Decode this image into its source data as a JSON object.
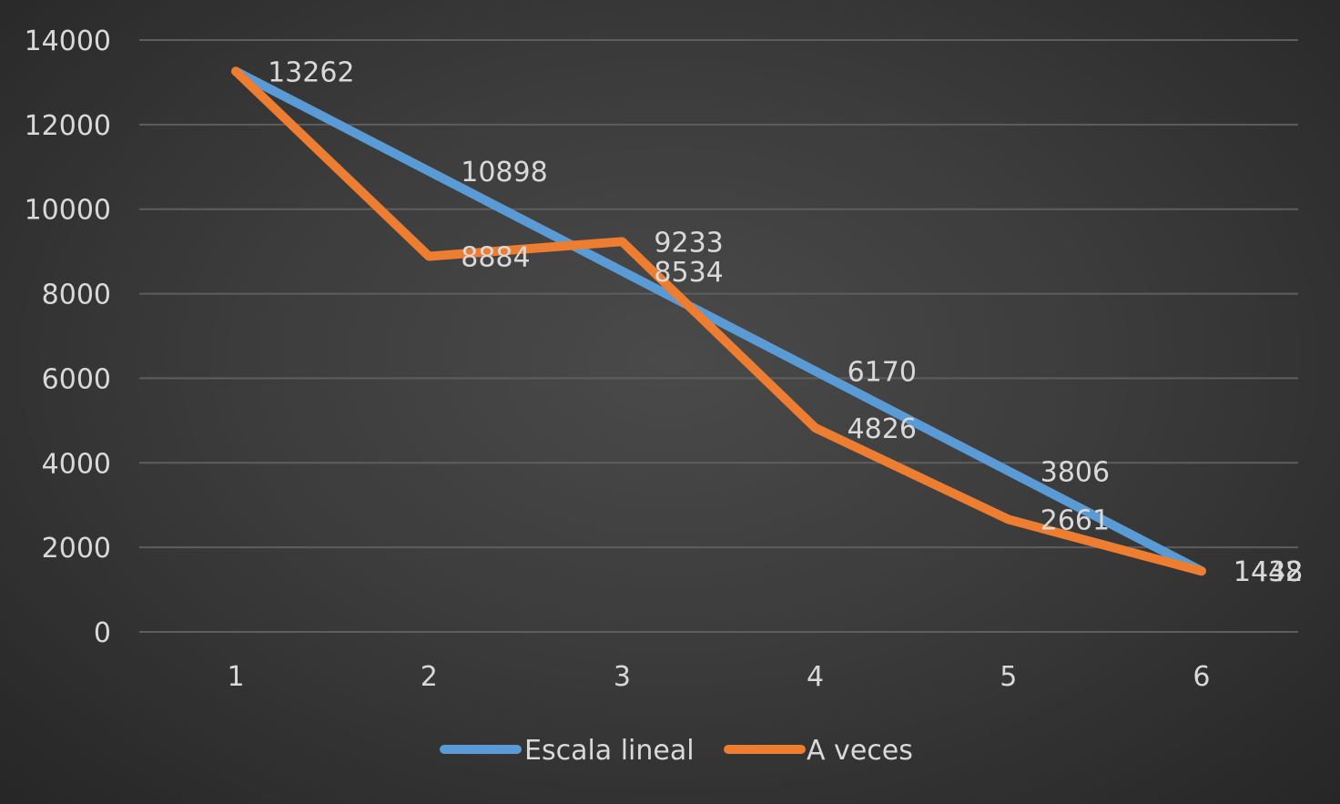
{
  "chart_data": {
    "type": "line",
    "title": "",
    "xlabel": "",
    "ylabel": "",
    "x": [
      "1",
      "2",
      "3",
      "4",
      "5",
      "6"
    ],
    "ylim": [
      0,
      14000
    ],
    "yticks": [
      "0",
      "2000",
      "4000",
      "6000",
      "8000",
      "10000",
      "12000",
      "14000"
    ],
    "grid": true,
    "legend_position": "bottom",
    "series": [
      {
        "name": "Escala lineal",
        "color": "#5b9bd5",
        "values": [
          13262,
          10898,
          8534,
          6170,
          3806,
          1442
        ],
        "labels": [
          "13262",
          "10898",
          "8534",
          "6170",
          "3806",
          "1442"
        ]
      },
      {
        "name": "A veces",
        "color": "#ed7d31",
        "values": [
          13262,
          8884,
          9233,
          4826,
          2661,
          1438
        ],
        "labels": [
          "",
          "8884",
          "9233",
          "4826",
          "2661",
          "1438"
        ]
      }
    ]
  }
}
